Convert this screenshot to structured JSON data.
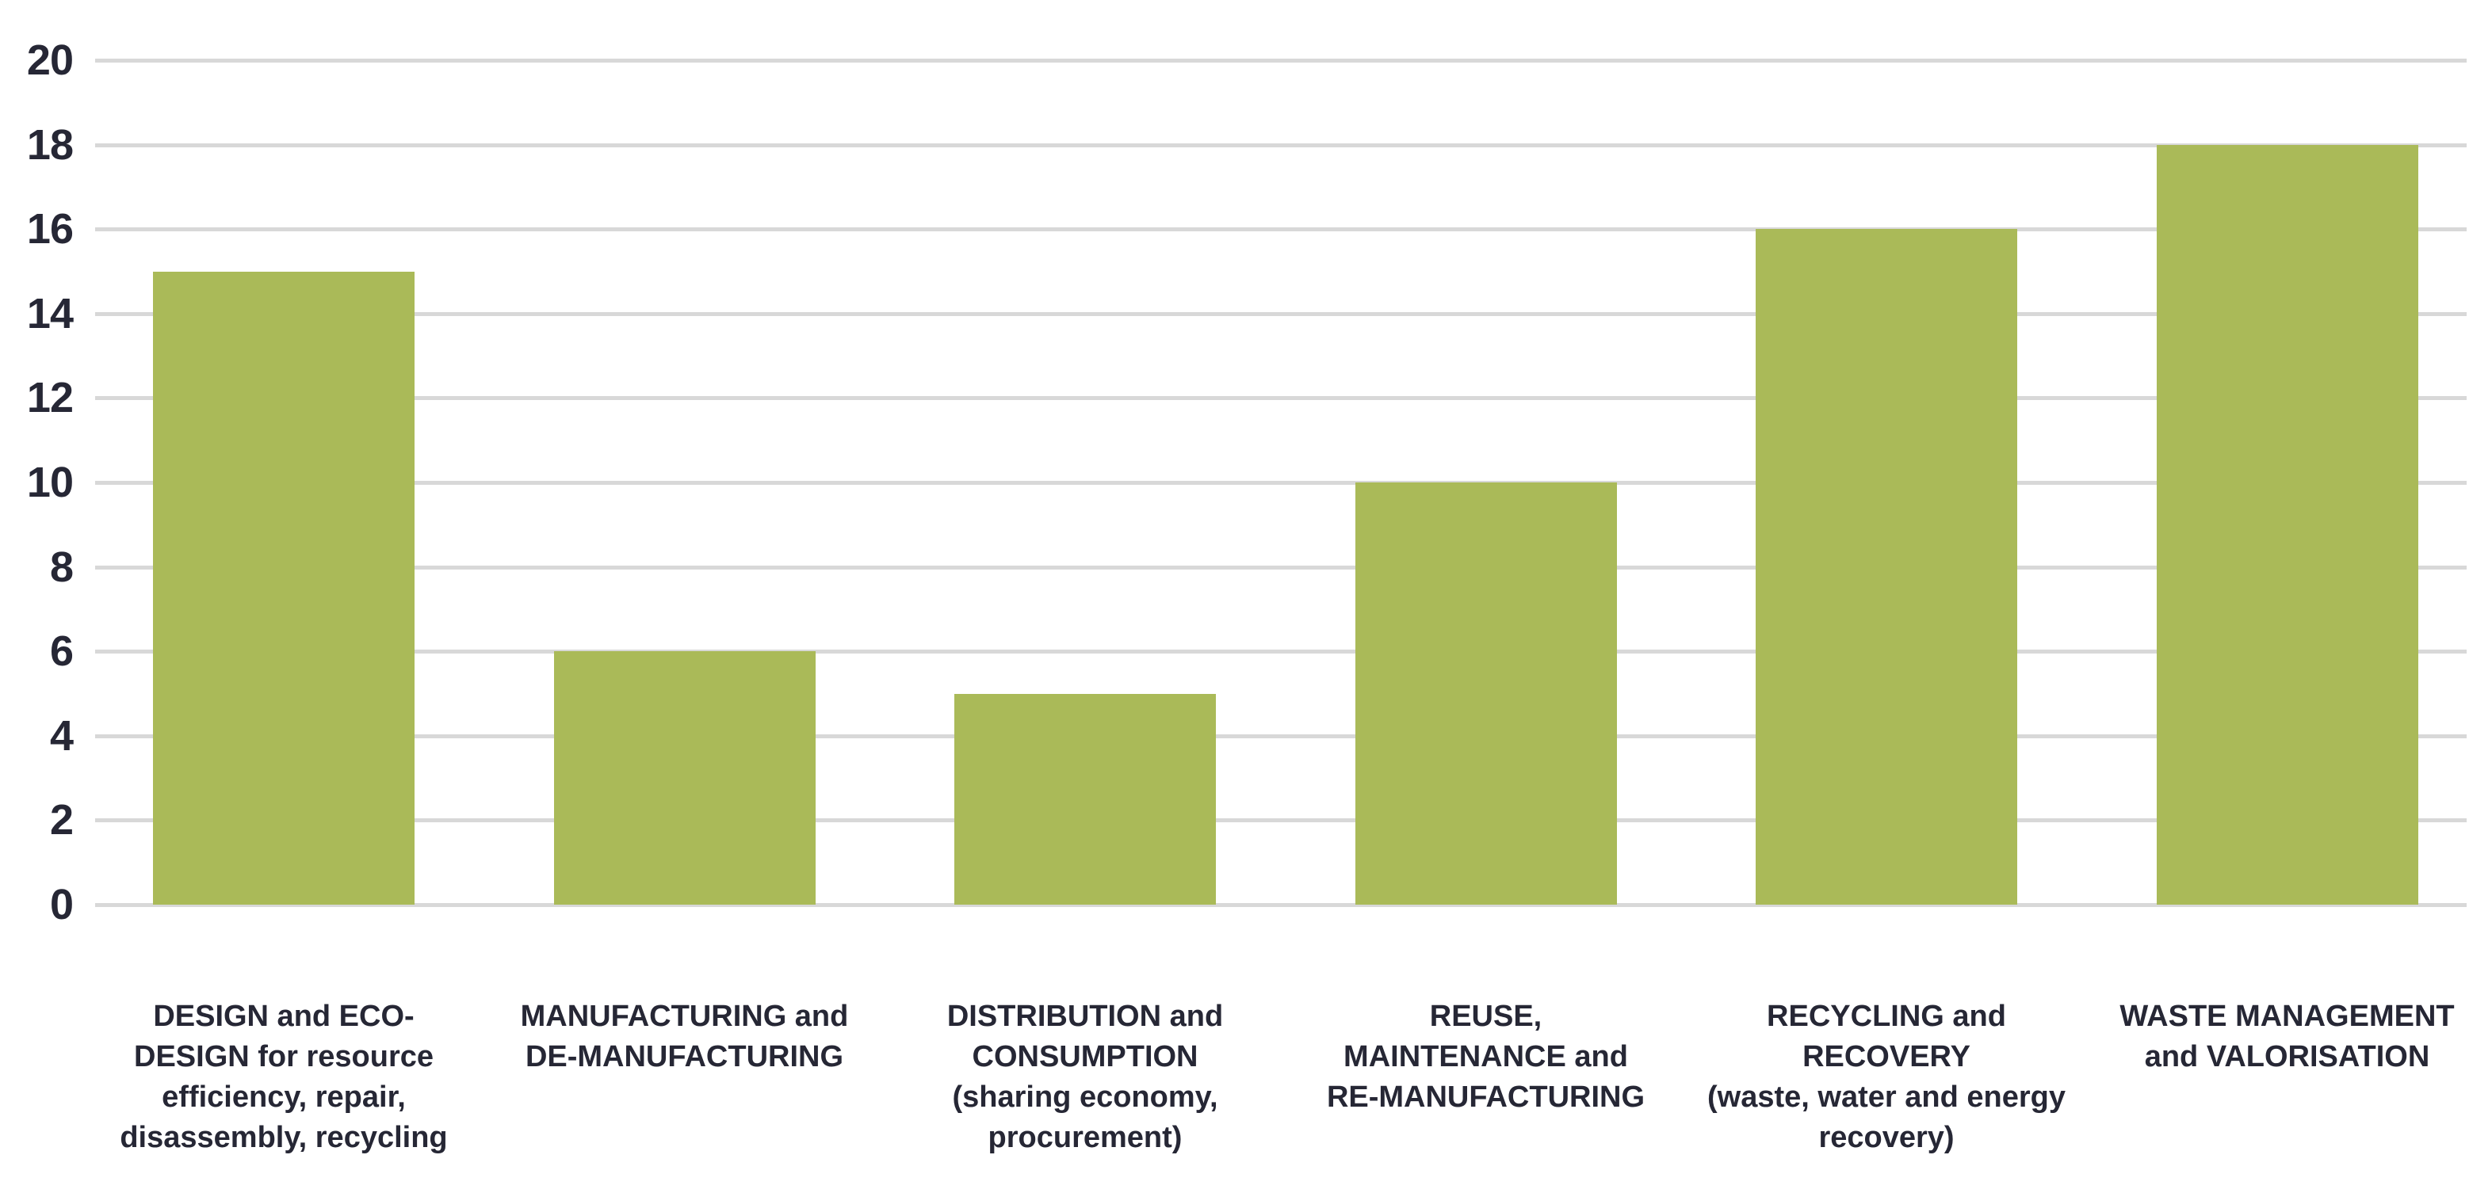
{
  "chart": {
    "bar_color": "#aaba58",
    "gridline_color": "#d8d8d8",
    "axis_text_color": "#262735",
    "label_text_color": "#262735"
  },
  "chart_data": {
    "type": "bar",
    "title": "",
    "xlabel": "",
    "ylabel": "",
    "ylim": [
      0,
      20
    ],
    "yticks": [
      20,
      18,
      16,
      14,
      12,
      10,
      8,
      6,
      4,
      2,
      0
    ],
    "grid": "horizontal",
    "legend": "none",
    "categories": [
      "DESIGN and ECO-DESIGN for resource efficiency, repair, disassembly, recycling",
      "MANUFACTURING and DE-MANUFACTURING",
      "DISTRIBUTION and CONSUMPTION (sharing economy, procurement)",
      "REUSE, MAINTENANCE and RE-MANUFACTURING",
      "RECYCLING and RECOVERY (waste, water and energy recovery)",
      "WASTE MANAGEMENT and VALORISATION"
    ],
    "categories_lines": [
      [
        "DESIGN and ECO-",
        "DESIGN for resource",
        "efficiency, repair,",
        "disassembly, recycling"
      ],
      [
        "MANUFACTURING and",
        "DE-MANUFACTURING"
      ],
      [
        "DISTRIBUTION and",
        "CONSUMPTION",
        "(sharing economy,",
        "procurement)"
      ],
      [
        "REUSE,",
        "MAINTENANCE and",
        "RE-MANUFACTURING"
      ],
      [
        "RECYCLING and",
        "RECOVERY",
        "(waste, water and energy",
        "recovery)"
      ],
      [
        "WASTE MANAGEMENT",
        "and VALORISATION"
      ]
    ],
    "values": [
      15,
      6,
      5,
      10,
      16,
      18
    ]
  }
}
